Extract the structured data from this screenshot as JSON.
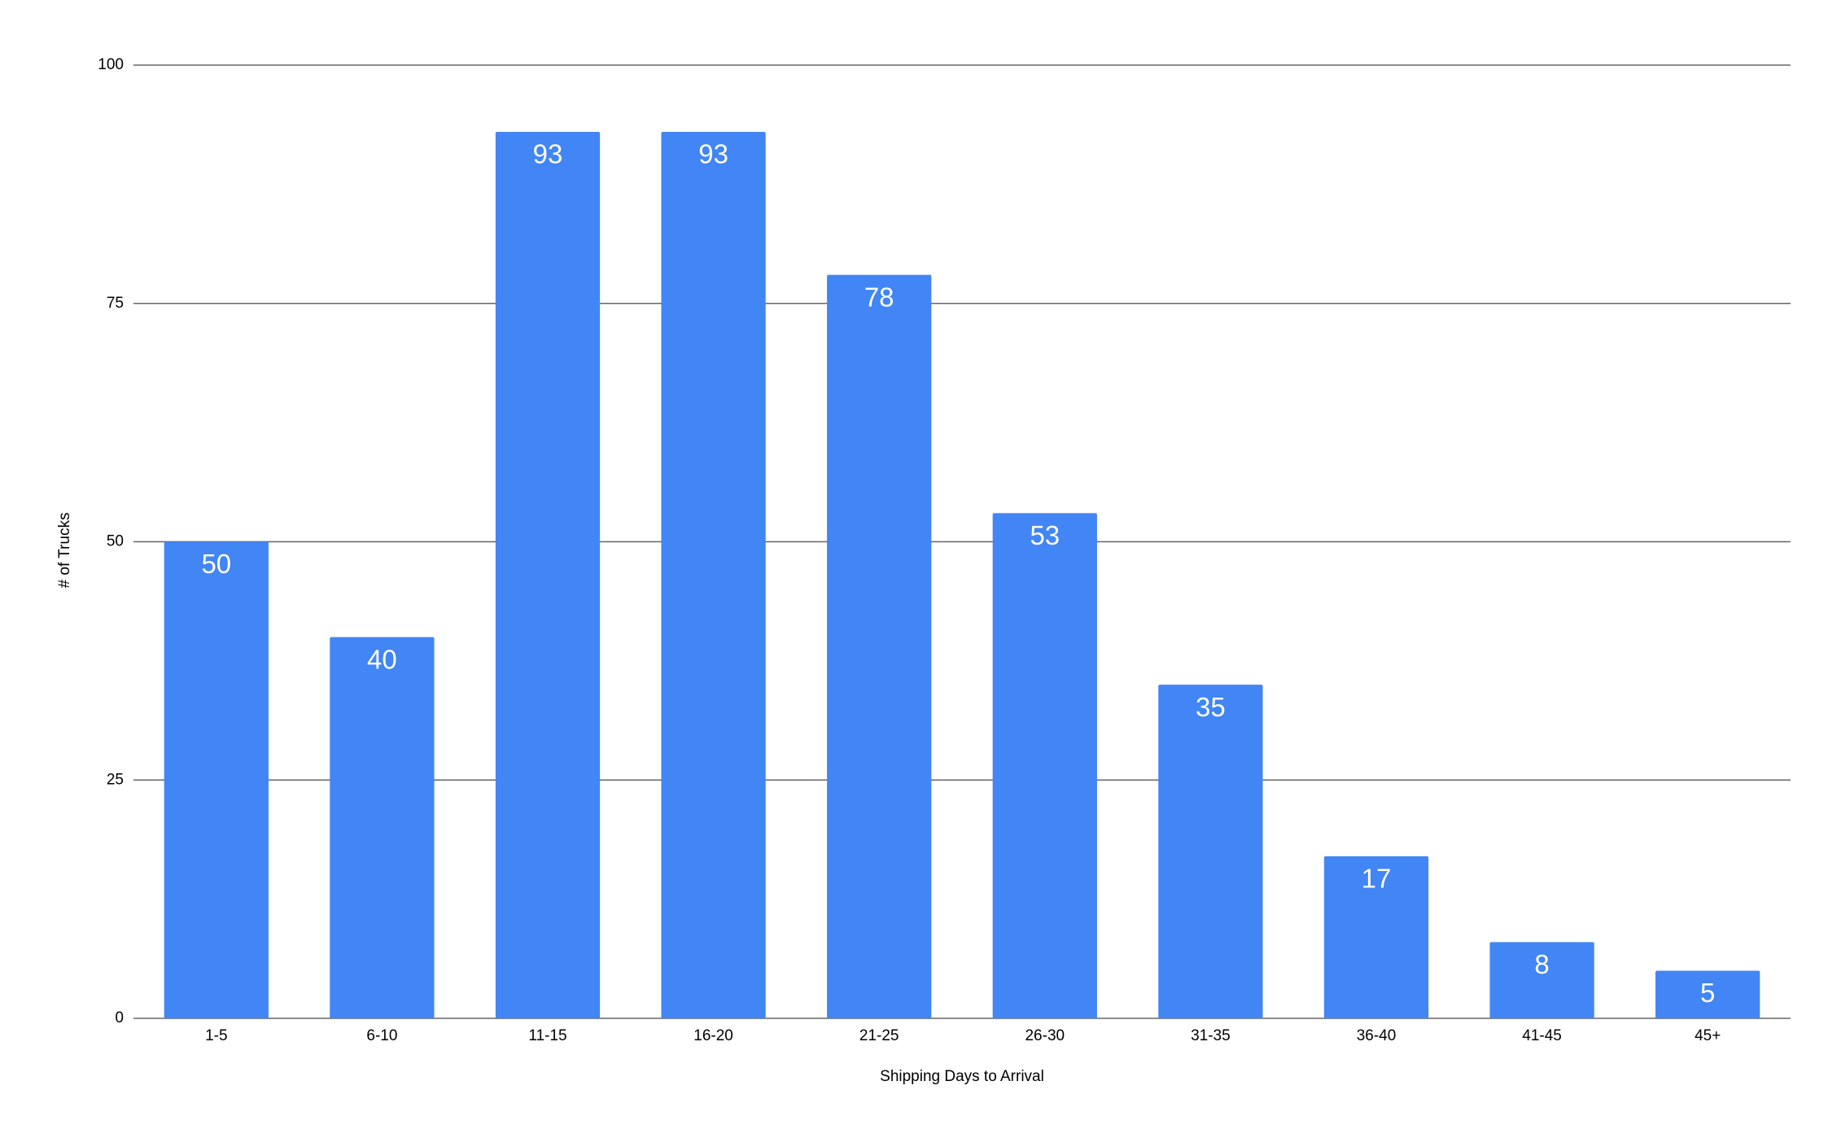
{
  "chart_data": {
    "type": "bar",
    "x_label": "Shipping Days to Arrival",
    "y_label": "# of Trucks",
    "categories": [
      "1-5",
      "6-10",
      "11-15",
      "16-20",
      "21-25",
      "26-30",
      "31-35",
      "36-40",
      "41-45",
      "45+"
    ],
    "values": [
      50,
      40,
      93,
      93,
      78,
      53,
      35,
      17,
      8,
      5
    ],
    "color": "#4285f4",
    "ylim": [
      0,
      100
    ],
    "yticks": [
      0,
      25,
      50,
      75,
      100
    ],
    "grid": true
  }
}
